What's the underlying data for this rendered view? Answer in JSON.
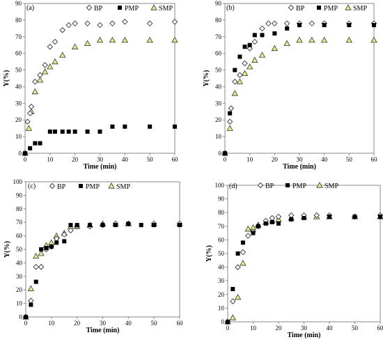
{
  "chart_data": [
    {
      "panel": "(a)",
      "type": "scatter",
      "xlabel": "Time (min)",
      "ylabel": "Y(%)",
      "xlim": [
        0,
        60
      ],
      "ylim": [
        0,
        90
      ],
      "xticks": [
        0,
        10,
        20,
        30,
        40,
        50,
        60
      ],
      "yticks": [
        0,
        10,
        20,
        30,
        40,
        50,
        60,
        70,
        80,
        90
      ],
      "grid": false,
      "legend": "top",
      "series": [
        {
          "name": "BP",
          "marker": "diamond-open",
          "color": "#000000",
          "x": [
            0,
            1,
            2,
            2.5,
            4,
            6,
            8,
            10,
            12,
            15,
            17.5,
            20,
            25,
            30,
            35,
            40,
            50,
            60
          ],
          "y": [
            0,
            19,
            24,
            28,
            43,
            47,
            53,
            64,
            67,
            74,
            77,
            78,
            78,
            77,
            78,
            79,
            78,
            79
          ]
        },
        {
          "name": "PMP",
          "marker": "square-filled",
          "color": "#000000",
          "x": [
            0,
            2,
            4,
            6,
            10,
            12,
            15,
            17.5,
            20,
            25,
            30,
            35,
            40,
            50,
            60
          ],
          "y": [
            0,
            3,
            6,
            6,
            13,
            13,
            13,
            13,
            13,
            13,
            13,
            16,
            16,
            16,
            16
          ]
        },
        {
          "name": "SMP",
          "marker": "triangle-filled",
          "color": "#e5ec8b",
          "x": [
            0,
            1.5,
            2.5,
            4,
            6,
            8,
            10,
            12,
            15,
            20,
            25,
            30,
            35,
            40,
            50,
            60
          ],
          "y": [
            0,
            15,
            25,
            37,
            44,
            49,
            52,
            55,
            59,
            64,
            66,
            68,
            68,
            68,
            68,
            68
          ]
        }
      ]
    },
    {
      "panel": "(b)",
      "type": "scatter",
      "xlabel": "Time (min)",
      "ylabel": "Y(%)",
      "xlim": [
        0,
        60
      ],
      "ylim": [
        0,
        90
      ],
      "xticks": [
        0,
        10,
        20,
        30,
        40,
        50,
        60
      ],
      "yticks": [
        0,
        10,
        20,
        30,
        40,
        50,
        60,
        70,
        80,
        90
      ],
      "grid": false,
      "legend": "top-right",
      "series": [
        {
          "name": "BP",
          "marker": "diamond-open",
          "color": "#000000",
          "x": [
            0,
            2,
            2.5,
            4,
            6,
            8,
            10,
            12,
            15,
            17.5,
            20,
            25,
            30,
            35,
            40,
            50,
            60
          ],
          "y": [
            0,
            19,
            27,
            43,
            47,
            54,
            63,
            67,
            75,
            78,
            78,
            78,
            78,
            78,
            78,
            78,
            78
          ]
        },
        {
          "name": "PMP",
          "marker": "square-filled",
          "color": "#000000",
          "x": [
            0,
            2,
            4,
            6,
            8,
            10,
            12,
            15,
            20,
            25,
            30,
            40,
            50,
            60
          ],
          "y": [
            0,
            24,
            50,
            58,
            64,
            65,
            71,
            71,
            72,
            75,
            77,
            77,
            77,
            77
          ]
        },
        {
          "name": "SMP",
          "marker": "triangle-filled",
          "color": "#e5ec8b",
          "x": [
            0,
            2,
            4,
            6,
            8,
            10,
            12,
            15,
            20,
            25,
            30,
            35,
            40,
            50,
            60
          ],
          "y": [
            0,
            15,
            36,
            43,
            48,
            52,
            56,
            59,
            63,
            66,
            68,
            68,
            68,
            68,
            68
          ]
        }
      ]
    },
    {
      "panel": "(c)",
      "type": "scatter",
      "xlabel": "Time (min)",
      "ylabel": "Y(%)",
      "xlim": [
        0,
        60
      ],
      "ylim": [
        0,
        100
      ],
      "xticks": [
        0,
        10,
        20,
        30,
        40,
        50,
        60
      ],
      "yticks": [
        0,
        10,
        20,
        30,
        40,
        50,
        60,
        70,
        80,
        90,
        100
      ],
      "grid": false,
      "legend": "top-left",
      "series": [
        {
          "name": "BP",
          "marker": "diamond-open",
          "color": "#000000",
          "x": [
            0,
            2,
            4,
            6,
            8,
            10,
            12,
            15,
            17.5,
            20,
            25,
            30,
            35,
            40,
            50,
            60
          ],
          "y": [
            0,
            12,
            37,
            37,
            50,
            52,
            58,
            61,
            64,
            67,
            67,
            68,
            69,
            69,
            69,
            69
          ]
        },
        {
          "name": "PMP",
          "marker": "square-filled",
          "color": "#000000",
          "x": [
            0,
            2,
            4,
            6,
            8,
            10,
            12,
            15,
            17.5,
            20,
            25,
            30,
            35,
            40,
            45,
            50,
            60
          ],
          "y": [
            0,
            9,
            26,
            50,
            51,
            52,
            55,
            56,
            68,
            68,
            68,
            68,
            68,
            69,
            68,
            68,
            68
          ]
        },
        {
          "name": "SMP",
          "marker": "triangle-filled",
          "color": "#e5ec8b",
          "x": [
            0,
            2,
            4,
            6,
            8,
            10,
            12,
            15,
            17.5,
            20,
            25,
            30,
            35,
            40,
            50,
            60
          ],
          "y": [
            0,
            21,
            45,
            47,
            53,
            55,
            60,
            62,
            67,
            67,
            68,
            69,
            69,
            69,
            69,
            69
          ]
        }
      ]
    },
    {
      "panel": "(d)",
      "type": "scatter",
      "xlabel": "Time (min)",
      "ylabel": "Y(%)",
      "xlim": [
        0,
        60
      ],
      "ylim": [
        0,
        100
      ],
      "xticks": [
        0,
        10,
        20,
        30,
        40,
        50,
        60
      ],
      "yticks": [
        0,
        10,
        20,
        30,
        40,
        50,
        60,
        70,
        80,
        90,
        100
      ],
      "grid": false,
      "legend": "top",
      "series": [
        {
          "name": "BP",
          "marker": "diamond-open",
          "color": "#000000",
          "x": [
            0,
            2,
            4,
            6,
            8,
            10,
            12,
            15,
            17.5,
            20,
            25,
            30,
            35,
            40,
            50,
            60
          ],
          "y": [
            0,
            15,
            40,
            51,
            63,
            66,
            70,
            74,
            76,
            77,
            78,
            78,
            78,
            78,
            77,
            78
          ]
        },
        {
          "name": "PMP",
          "marker": "square-filled",
          "color": "#000000",
          "x": [
            0,
            2,
            4,
            6,
            10,
            12,
            15,
            17.5,
            20,
            25,
            30,
            40,
            50,
            60
          ],
          "y": [
            0,
            24,
            50,
            58,
            65,
            70,
            72,
            73,
            72,
            75,
            76,
            77,
            77,
            77
          ]
        },
        {
          "name": "SMP",
          "marker": "triangle-filled",
          "color": "#e5ec8b",
          "x": [
            0,
            2,
            4,
            6,
            8,
            10,
            12,
            15,
            17.5,
            20,
            25,
            30,
            35,
            40,
            50,
            60
          ],
          "y": [
            0,
            3,
            18,
            43,
            68,
            69,
            71,
            73,
            74,
            75,
            76,
            77,
            77,
            77,
            77,
            77
          ]
        }
      ]
    }
  ]
}
